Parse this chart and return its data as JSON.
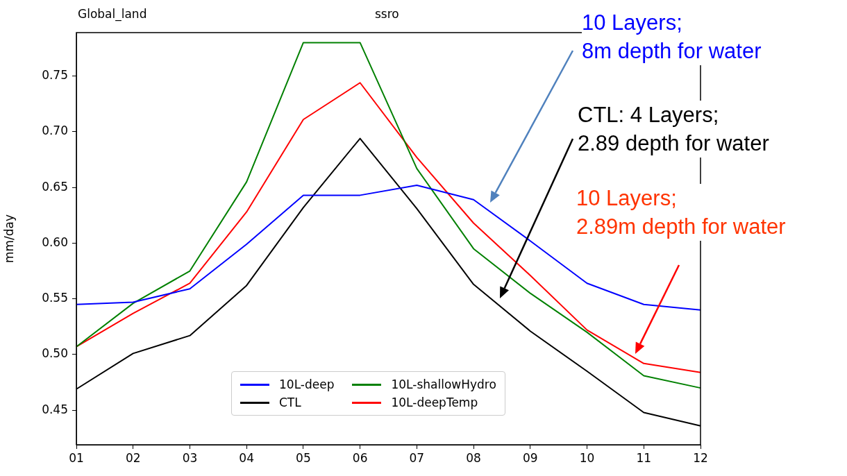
{
  "chart_data": {
    "type": "line",
    "title": "ssro",
    "ylabel": "mm/day",
    "categories": [
      "01",
      "02",
      "03",
      "04",
      "05",
      "06",
      "07",
      "08",
      "09",
      "10",
      "11",
      "12"
    ],
    "series": [
      {
        "name": "10L-deep",
        "color": "#0000ff",
        "values": [
          0.545,
          0.547,
          0.559,
          0.599,
          0.643,
          0.643,
          0.652,
          0.639,
          0.602,
          0.564,
          0.545,
          0.54
        ]
      },
      {
        "name": "CTL",
        "color": "#000000",
        "values": [
          0.469,
          0.501,
          0.517,
          0.562,
          0.632,
          0.694,
          0.631,
          0.563,
          0.521,
          0.485,
          0.448,
          0.436
        ]
      },
      {
        "name": "10L-shallowHydro",
        "color": "#008000",
        "values": [
          0.507,
          0.546,
          0.575,
          0.655,
          0.78,
          0.78,
          0.667,
          0.595,
          0.555,
          0.52,
          0.481,
          0.47
        ]
      },
      {
        "name": "10L-deepTemp",
        "color": "#ff0000",
        "values": [
          0.507,
          0.537,
          0.564,
          0.628,
          0.711,
          0.744,
          0.677,
          0.618,
          0.571,
          0.522,
          0.492,
          0.484
        ]
      }
    ],
    "ylim": [
      0.419,
      0.789
    ],
    "yticks": [
      {
        "value": 0.45,
        "label": "0.45"
      },
      {
        "value": 0.5,
        "label": "0.50"
      },
      {
        "value": 0.55,
        "label": "0.55"
      },
      {
        "value": 0.6,
        "label": "0.60"
      },
      {
        "value": 0.65,
        "label": "0.65"
      },
      {
        "value": 0.7,
        "label": "0.70"
      },
      {
        "value": 0.75,
        "label": "0.75"
      }
    ],
    "grid": false,
    "legend": "bottom",
    "marker": "none",
    "line_style": "solid",
    "annotations": [
      "Global_land",
      "10 Layers;\n8m depth for water",
      "CTL: 4 Layers;\n2.89 depth for water",
      "10 Layers;\n2.89m depth for water"
    ]
  }
}
